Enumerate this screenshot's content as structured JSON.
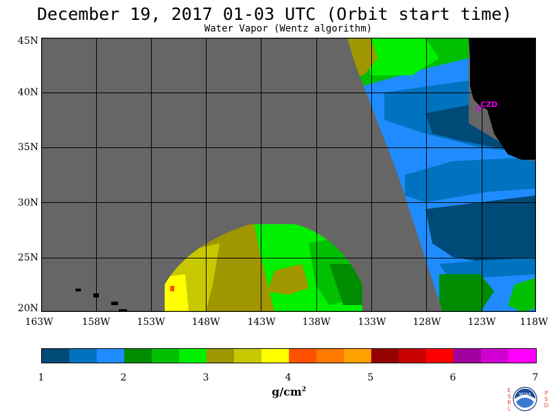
{
  "header": {
    "title": "December 19, 2017  01-03 UTC  (Orbit start time)",
    "subtitle": "Water Vapor (Wentz algorithm)"
  },
  "map": {
    "lat_range": [
      20,
      45
    ],
    "lon_range": [
      -163,
      -118
    ],
    "lat_labels": [
      "45N",
      "40N",
      "35N",
      "30N",
      "25N",
      "20N"
    ],
    "lon_labels": [
      "163W",
      "158W",
      "153W",
      "148W",
      "143W",
      "138W",
      "133W",
      "128W",
      "123W",
      "118W"
    ],
    "station_label": "CZD",
    "colors": {
      "no_data": "#666666",
      "land": "#000000",
      "grid": "#000000"
    }
  },
  "colorbar": {
    "ticks": [
      "1",
      "2",
      "3",
      "4",
      "5",
      "6",
      "7"
    ],
    "units_base": "g/cm",
    "units_exp": "2",
    "colors": [
      "#004a78",
      "#0073c0",
      "#1e8cff",
      "#008c00",
      "#00c000",
      "#00f000",
      "#a09600",
      "#c8c800",
      "#ffff00",
      "#ff5000",
      "#ff7800",
      "#ffa000",
      "#960000",
      "#c80000",
      "#ff0000",
      "#a000a0",
      "#d000d0",
      "#ff00ff"
    ]
  },
  "logo": {
    "text": "NOAA",
    "left_letters": [
      "E",
      "S",
      "R",
      "L"
    ],
    "right_letters": [
      "P",
      "S",
      "D"
    ]
  }
}
